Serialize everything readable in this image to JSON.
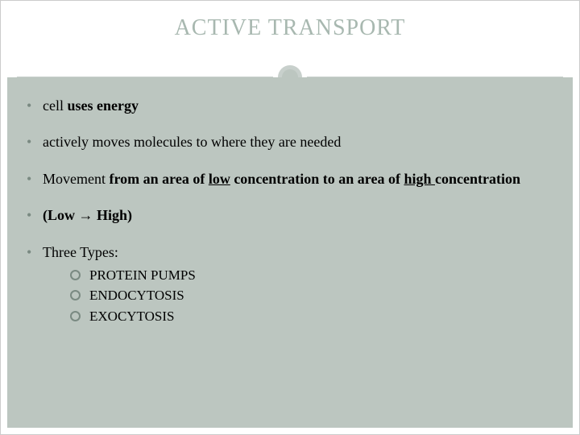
{
  "title": "ACTIVE TRANSPORT",
  "bullets": {
    "b1_a": "cell ",
    "b1_b": "uses energy",
    "b2": "actively moves molecules to where they are needed",
    "b3_a": "Movement  ",
    "b3_b": "from an area of ",
    "b3_c": "low",
    "b3_d": " concentration to an area of ",
    "b3_e": "high ",
    "b3_f": "concentration",
    "b4_a": "(Low ",
    "b4_arrow": "→",
    "b4_b": " High)",
    "b5": "Three Types:"
  },
  "sub": {
    "s1": "PROTEIN PUMPS",
    "s2": "ENDOCYTOSIS",
    "s3": "EXOCYTOSIS"
  },
  "colors": {
    "title_color": "#a8b8b0",
    "body_bg": "#bcc6c0",
    "bullet_color": "#7a8a82",
    "line_color": "#c8d0cc"
  }
}
